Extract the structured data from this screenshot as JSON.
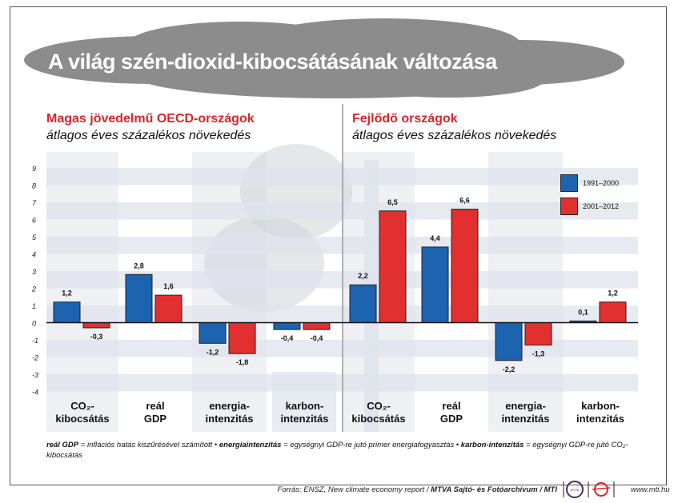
{
  "title": "A világ szén-dioxid-kibocsátásának változása",
  "left_panel": {
    "title": "Magas jövedelmű OECD-országok",
    "subtitle": "átlagos éves százalékos növekedés"
  },
  "right_panel": {
    "title": "Fejlődő országok",
    "subtitle": "átlagos éves százalékos növekedés"
  },
  "chart_data": {
    "type": "bar",
    "ylim": [
      -4,
      9
    ],
    "yticks": [
      "9",
      "8",
      "7",
      "6",
      "5",
      "4",
      "3",
      "2",
      "1",
      "0",
      "-1",
      "-2",
      "-3",
      "-4"
    ],
    "categories": [
      {
        "line1": "CO₂-",
        "line2": "kibocsátás"
      },
      {
        "line1": "reál",
        "line2": "GDP"
      },
      {
        "line1": "energia-",
        "line2": "intenzitás"
      },
      {
        "line1": "karbon-",
        "line2": "intenzitás"
      },
      {
        "line1": "CO₂-",
        "line2": "kibocsátás"
      },
      {
        "line1": "reál",
        "line2": "GDP"
      },
      {
        "line1": "energia-",
        "line2": "intenzitás"
      },
      {
        "line1": "karbon-",
        "line2": "intenzitás"
      }
    ],
    "series": [
      {
        "name": "1991–2000",
        "color": "#1c63b0",
        "values": [
          1.2,
          2.8,
          -1.2,
          -0.4,
          2.2,
          4.4,
          -2.2,
          0.1
        ],
        "labels": [
          "1,2",
          "2,8",
          "-1,2",
          "-0,4",
          "2,2",
          "4,4",
          "-2,2",
          "0,1"
        ]
      },
      {
        "name": "2001–2012",
        "color": "#e1302f",
        "values": [
          -0.3,
          1.6,
          -1.8,
          -0.4,
          6.5,
          6.6,
          -1.3,
          1.2
        ],
        "labels": [
          "-0,3",
          "1,6",
          "-1,8",
          "-0,4",
          "6,5",
          "6,6",
          "-1,3",
          "1,2"
        ]
      }
    ],
    "legend_position": "top-right",
    "grid": "alternating bands"
  },
  "footnote": {
    "t1b": "reál GDP",
    "t1": " = inflációs hatás kiszűrésével számított • ",
    "t2b": "energiaintenzitás",
    "t2": " = egységnyi GDP-re jutó primer energiafogyasztás • ",
    "t3b": "karbon-intenzitás",
    "t3": " = egységnyi GDP-re jutó CO₂-kibocsátás"
  },
  "source": {
    "text": "Forrás: ENSZ, New climate economy report / ",
    "bold": "MTVA Sajtó- és Fotóarchívum / MTI",
    "logo1": "MTVA",
    "url": "www.mti.hu"
  }
}
